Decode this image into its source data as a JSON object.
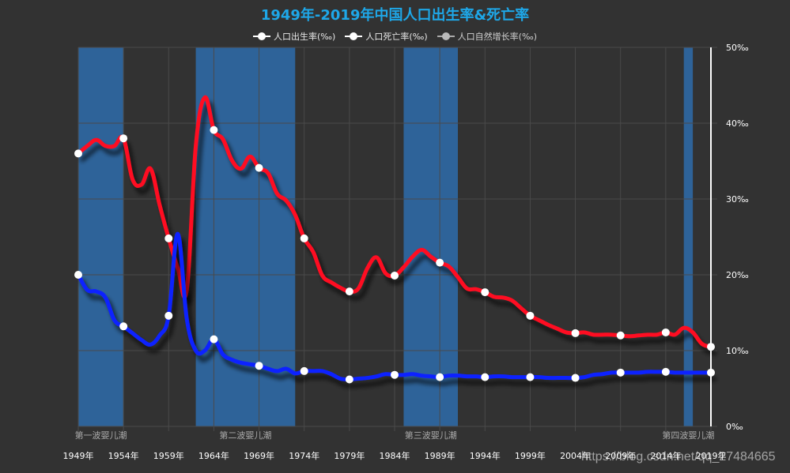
{
  "title": "1949年-2019年中国人口出生率&死亡率",
  "legend": [
    {
      "label": "人口出生率(‰)",
      "line_color": "#ffffff",
      "dot_color": "#ffffff"
    },
    {
      "label": "人口死亡率(‰)",
      "line_color": "#ffffff",
      "dot_color": "#ffffff"
    },
    {
      "label": "人口自然增长率(‰)",
      "line_color": "#aaaaaa",
      "dot_color": "#bbbbbb"
    }
  ],
  "watermark": "https://blog.csdn.net/qq_27484665",
  "colors": {
    "background": "#323232",
    "title": "#1ea7e8",
    "birth": "#ff1020",
    "death": "#1020ff",
    "band": "#2e6399",
    "grid": "#4a4a4a",
    "axis": "#ffffff",
    "text": "#ffffff",
    "band_label": "#aaaaaa"
  },
  "chart_data": {
    "type": "line",
    "title": "1949年-2019年中国人口出生率&死亡率",
    "xlabel": "",
    "ylabel": "",
    "ylim": [
      0,
      50
    ],
    "y_ticks": [
      "0‰",
      "10‰",
      "20‰",
      "30‰",
      "40‰",
      "50‰"
    ],
    "y_axis_position": "right",
    "x_tick_labels": [
      "1949年",
      "1954年",
      "1959年",
      "1964年",
      "1969年",
      "1974年",
      "1979年",
      "1984年",
      "1989年",
      "1994年",
      "1999年",
      "2004年",
      "2009年",
      "2014年",
      "2019年"
    ],
    "grid": true,
    "legend_position": "top",
    "x": [
      1949,
      1950,
      1951,
      1952,
      1953,
      1954,
      1955,
      1956,
      1957,
      1958,
      1959,
      1960,
      1961,
      1962,
      1963,
      1964,
      1965,
      1966,
      1967,
      1968,
      1969,
      1970,
      1971,
      1972,
      1973,
      1974,
      1975,
      1976,
      1977,
      1978,
      1979,
      1980,
      1981,
      1982,
      1983,
      1984,
      1985,
      1986,
      1987,
      1988,
      1989,
      1990,
      1991,
      1992,
      1993,
      1994,
      1995,
      1996,
      1997,
      1998,
      1999,
      2000,
      2001,
      2002,
      2003,
      2004,
      2005,
      2006,
      2007,
      2008,
      2009,
      2010,
      2011,
      2012,
      2013,
      2014,
      2015,
      2016,
      2017,
      2018,
      2019
    ],
    "series": [
      {
        "name": "人口出生率(‰)",
        "values": [
          36,
          37,
          37.8,
          37,
          37,
          38,
          32.6,
          31.9,
          34,
          29.2,
          24.8,
          20.9,
          18,
          37,
          43.4,
          39.1,
          37.9,
          35.1,
          34,
          35.6,
          34.1,
          33.4,
          30.7,
          29.8,
          27.9,
          24.8,
          23,
          19.9,
          19,
          18.3,
          17.8,
          18.2,
          20.9,
          22.3,
          20.2,
          19.9,
          21,
          22.4,
          23.3,
          22.4,
          21.6,
          21.1,
          19.7,
          18.2,
          18.1,
          17.7,
          17.1,
          17,
          16.6,
          15.6,
          14.6,
          14,
          13.4,
          12.9,
          12.4,
          12.3,
          12.4,
          12.1,
          12.1,
          12.1,
          12,
          11.9,
          12,
          12.1,
          12.1,
          12.4,
          12.1,
          13,
          12.4,
          10.9,
          10.5
        ]
      },
      {
        "name": "人口死亡率(‰)",
        "values": [
          20,
          18,
          17.8,
          17,
          14,
          13.2,
          12.3,
          11.4,
          10.8,
          12,
          14.6,
          25.4,
          14.2,
          10,
          10,
          11.5,
          9.5,
          8.8,
          8.4,
          8.2,
          8,
          7.6,
          7.3,
          7.6,
          7,
          7.3,
          7.3,
          7.3,
          6.9,
          6.3,
          6.2,
          6.3,
          6.4,
          6.6,
          6.9,
          6.8,
          6.8,
          6.9,
          6.7,
          6.6,
          6.5,
          6.7,
          6.7,
          6.6,
          6.6,
          6.5,
          6.6,
          6.6,
          6.5,
          6.5,
          6.5,
          6.5,
          6.4,
          6.4,
          6.4,
          6.4,
          6.5,
          6.8,
          6.9,
          7.1,
          7.1,
          7.1,
          7.1,
          7.2,
          7.2,
          7.2,
          7.1,
          7.1,
          7.1,
          7.1,
          7.1
        ]
      },
      {
        "name": "人口自然增长率(‰)",
        "values": [],
        "hidden": true
      }
    ],
    "marker_every_years": 5,
    "mark_areas": [
      {
        "label": "第一波婴儿潮",
        "from": 1949,
        "to": 1954
      },
      {
        "label": "第二波婴儿潮",
        "from": 1962,
        "to": 1973
      },
      {
        "label": "第三波婴儿潮",
        "from": 1985,
        "to": 1991
      },
      {
        "label": "第四波婴儿潮",
        "from": 2016,
        "to": 2017
      }
    ]
  }
}
